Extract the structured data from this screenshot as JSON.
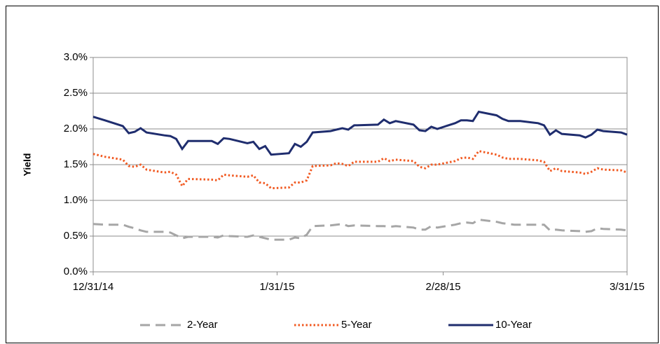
{
  "chart_data": {
    "type": "line",
    "y_label": "Yield",
    "x": [
      "12/31/14",
      "1/2/15",
      "1/5/15",
      "1/6/15",
      "1/7/15",
      "1/8/15",
      "1/9/15",
      "1/12/15",
      "1/13/15",
      "1/14/15",
      "1/15/15",
      "1/16/15",
      "1/20/15",
      "1/21/15",
      "1/22/15",
      "1/23/15",
      "1/26/15",
      "1/27/15",
      "1/28/15",
      "1/29/15",
      "1/30/15",
      "2/2/15",
      "2/3/15",
      "2/4/15",
      "2/5/15",
      "2/6/15",
      "2/9/15",
      "2/10/15",
      "2/11/15",
      "2/12/15",
      "2/13/15",
      "2/17/15",
      "2/18/15",
      "2/19/15",
      "2/20/15",
      "2/23/15",
      "2/24/15",
      "2/25/15",
      "2/26/15",
      "2/27/15",
      "3/2/15",
      "3/3/15",
      "3/4/15",
      "3/5/15",
      "3/6/15",
      "3/9/15",
      "3/10/15",
      "3/11/15",
      "3/12/15",
      "3/13/15",
      "3/16/15",
      "3/17/15",
      "3/18/15",
      "3/19/15",
      "3/20/15",
      "3/23/15",
      "3/24/15",
      "3/25/15",
      "3/26/15",
      "3/27/15",
      "3/30/15",
      "3/31/15"
    ],
    "series": [
      {
        "name": "2-Year",
        "color": "#a6a6a6",
        "dash": "dashed",
        "values": [
          0.67,
          0.66,
          0.66,
          0.63,
          0.61,
          0.58,
          0.56,
          0.56,
          0.55,
          0.51,
          0.47,
          0.49,
          0.49,
          0.48,
          0.51,
          0.5,
          0.49,
          0.51,
          0.49,
          0.47,
          0.45,
          0.45,
          0.48,
          0.47,
          0.52,
          0.64,
          0.65,
          0.66,
          0.67,
          0.64,
          0.65,
          0.64,
          0.64,
          0.63,
          0.64,
          0.62,
          0.59,
          0.59,
          0.64,
          0.62,
          0.66,
          0.68,
          0.69,
          0.68,
          0.73,
          0.7,
          0.68,
          0.67,
          0.66,
          0.66,
          0.66,
          0.66,
          0.58,
          0.59,
          0.58,
          0.57,
          0.56,
          0.57,
          0.61,
          0.6,
          0.59,
          0.58
        ]
      },
      {
        "name": "5-Year",
        "color": "#f15a22",
        "dash": "dotted",
        "values": [
          1.65,
          1.61,
          1.57,
          1.48,
          1.47,
          1.5,
          1.43,
          1.39,
          1.4,
          1.36,
          1.2,
          1.3,
          1.29,
          1.28,
          1.36,
          1.35,
          1.33,
          1.35,
          1.25,
          1.24,
          1.17,
          1.18,
          1.25,
          1.25,
          1.28,
          1.48,
          1.49,
          1.52,
          1.51,
          1.48,
          1.54,
          1.54,
          1.59,
          1.55,
          1.57,
          1.55,
          1.47,
          1.45,
          1.5,
          1.5,
          1.55,
          1.59,
          1.6,
          1.58,
          1.69,
          1.64,
          1.6,
          1.58,
          1.58,
          1.58,
          1.56,
          1.54,
          1.41,
          1.45,
          1.41,
          1.39,
          1.37,
          1.4,
          1.45,
          1.43,
          1.42,
          1.39
        ]
      },
      {
        "name": "10-Year",
        "color": "#1f2d6e",
        "dash": "solid",
        "values": [
          2.17,
          2.12,
          2.04,
          1.94,
          1.96,
          2.01,
          1.95,
          1.91,
          1.9,
          1.86,
          1.72,
          1.83,
          1.83,
          1.79,
          1.87,
          1.86,
          1.8,
          1.82,
          1.72,
          1.76,
          1.64,
          1.66,
          1.79,
          1.75,
          1.82,
          1.95,
          1.97,
          1.99,
          2.01,
          1.99,
          2.05,
          2.06,
          2.13,
          2.08,
          2.11,
          2.06,
          1.98,
          1.97,
          2.03,
          2.0,
          2.08,
          2.12,
          2.12,
          2.11,
          2.24,
          2.19,
          2.14,
          2.11,
          2.11,
          2.11,
          2.08,
          2.05,
          1.92,
          1.98,
          1.93,
          1.91,
          1.88,
          1.92,
          1.99,
          1.97,
          1.95,
          1.92
        ]
      }
    ],
    "xlim": [
      "12/31/14",
      "3/31/15"
    ],
    "xticks": [
      "12/31/14",
      "1/31/15",
      "2/28/15",
      "3/31/15"
    ],
    "ylim": [
      0,
      3
    ],
    "yticks": [
      {
        "value": 0,
        "label": "0.0%"
      },
      {
        "value": 0.5,
        "label": "0.5%"
      },
      {
        "value": 1,
        "label": "1.0%"
      },
      {
        "value": 1.5,
        "label": "1.5%"
      },
      {
        "value": 2,
        "label": "2.0%"
      },
      {
        "value": 2.5,
        "label": "2.5%"
      },
      {
        "value": 3,
        "label": "3.0%"
      }
    ],
    "grid": true,
    "legend": "bottom"
  }
}
